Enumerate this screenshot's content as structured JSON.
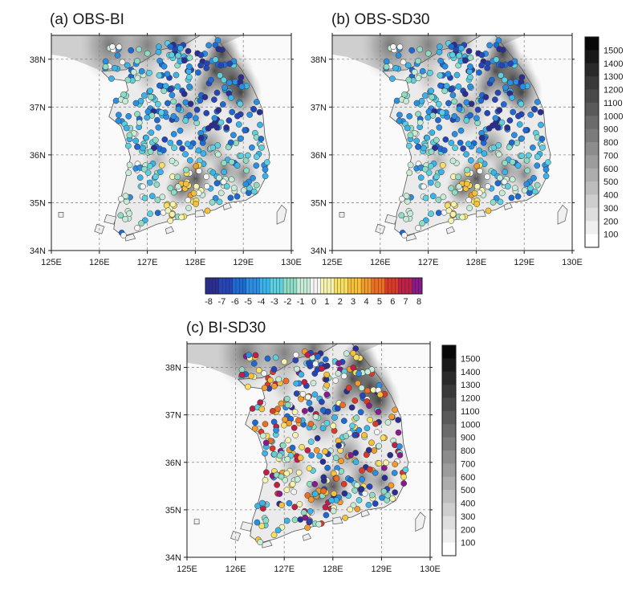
{
  "panels": [
    {
      "id": "a",
      "title": "(a) OBS-BI",
      "seed": 11
    },
    {
      "id": "b",
      "title": "(b) OBS-SD30",
      "seed": 11
    },
    {
      "id": "c",
      "title": "(c) BI-SD30",
      "seed": 47
    }
  ],
  "lon_labels": [
    "125E",
    "126E",
    "127E",
    "128E",
    "129E",
    "130E"
  ],
  "lat_labels": [
    "34N",
    "35N",
    "36N",
    "37N",
    "38N"
  ],
  "lon_range": [
    125,
    130
  ],
  "lat_range": [
    34,
    38.5
  ],
  "elevation_colorbar": {
    "labels": [
      "100",
      "200",
      "300",
      "400",
      "500",
      "600",
      "700",
      "800",
      "900",
      "1000",
      "1100",
      "1200",
      "1300",
      "1400",
      "1500"
    ]
  },
  "difference_colorbar": {
    "labels": [
      "-8",
      "-7",
      "-6",
      "-5",
      "-4",
      "-3",
      "-2",
      "-1",
      "0",
      "1",
      "2",
      "3",
      "4",
      "5",
      "6",
      "7",
      "8"
    ],
    "colors": [
      "#2a2e93",
      "#2546b8",
      "#1e6ad4",
      "#2a8fe3",
      "#3ab3ea",
      "#5ccfe0",
      "#8fdcc6",
      "#c6ecd8",
      "#f4f4f4",
      "#f6f2b0",
      "#f7e061",
      "#f6c039",
      "#f29a2b",
      "#eb6e23",
      "#d93a2a",
      "#c02048",
      "#8a1a8c"
    ]
  },
  "colors": {
    "land_low": "#f4f4f4",
    "land_high": "#111111",
    "sea": "#fafafa",
    "frame": "#1a1a1a",
    "grid": "#888888"
  }
}
